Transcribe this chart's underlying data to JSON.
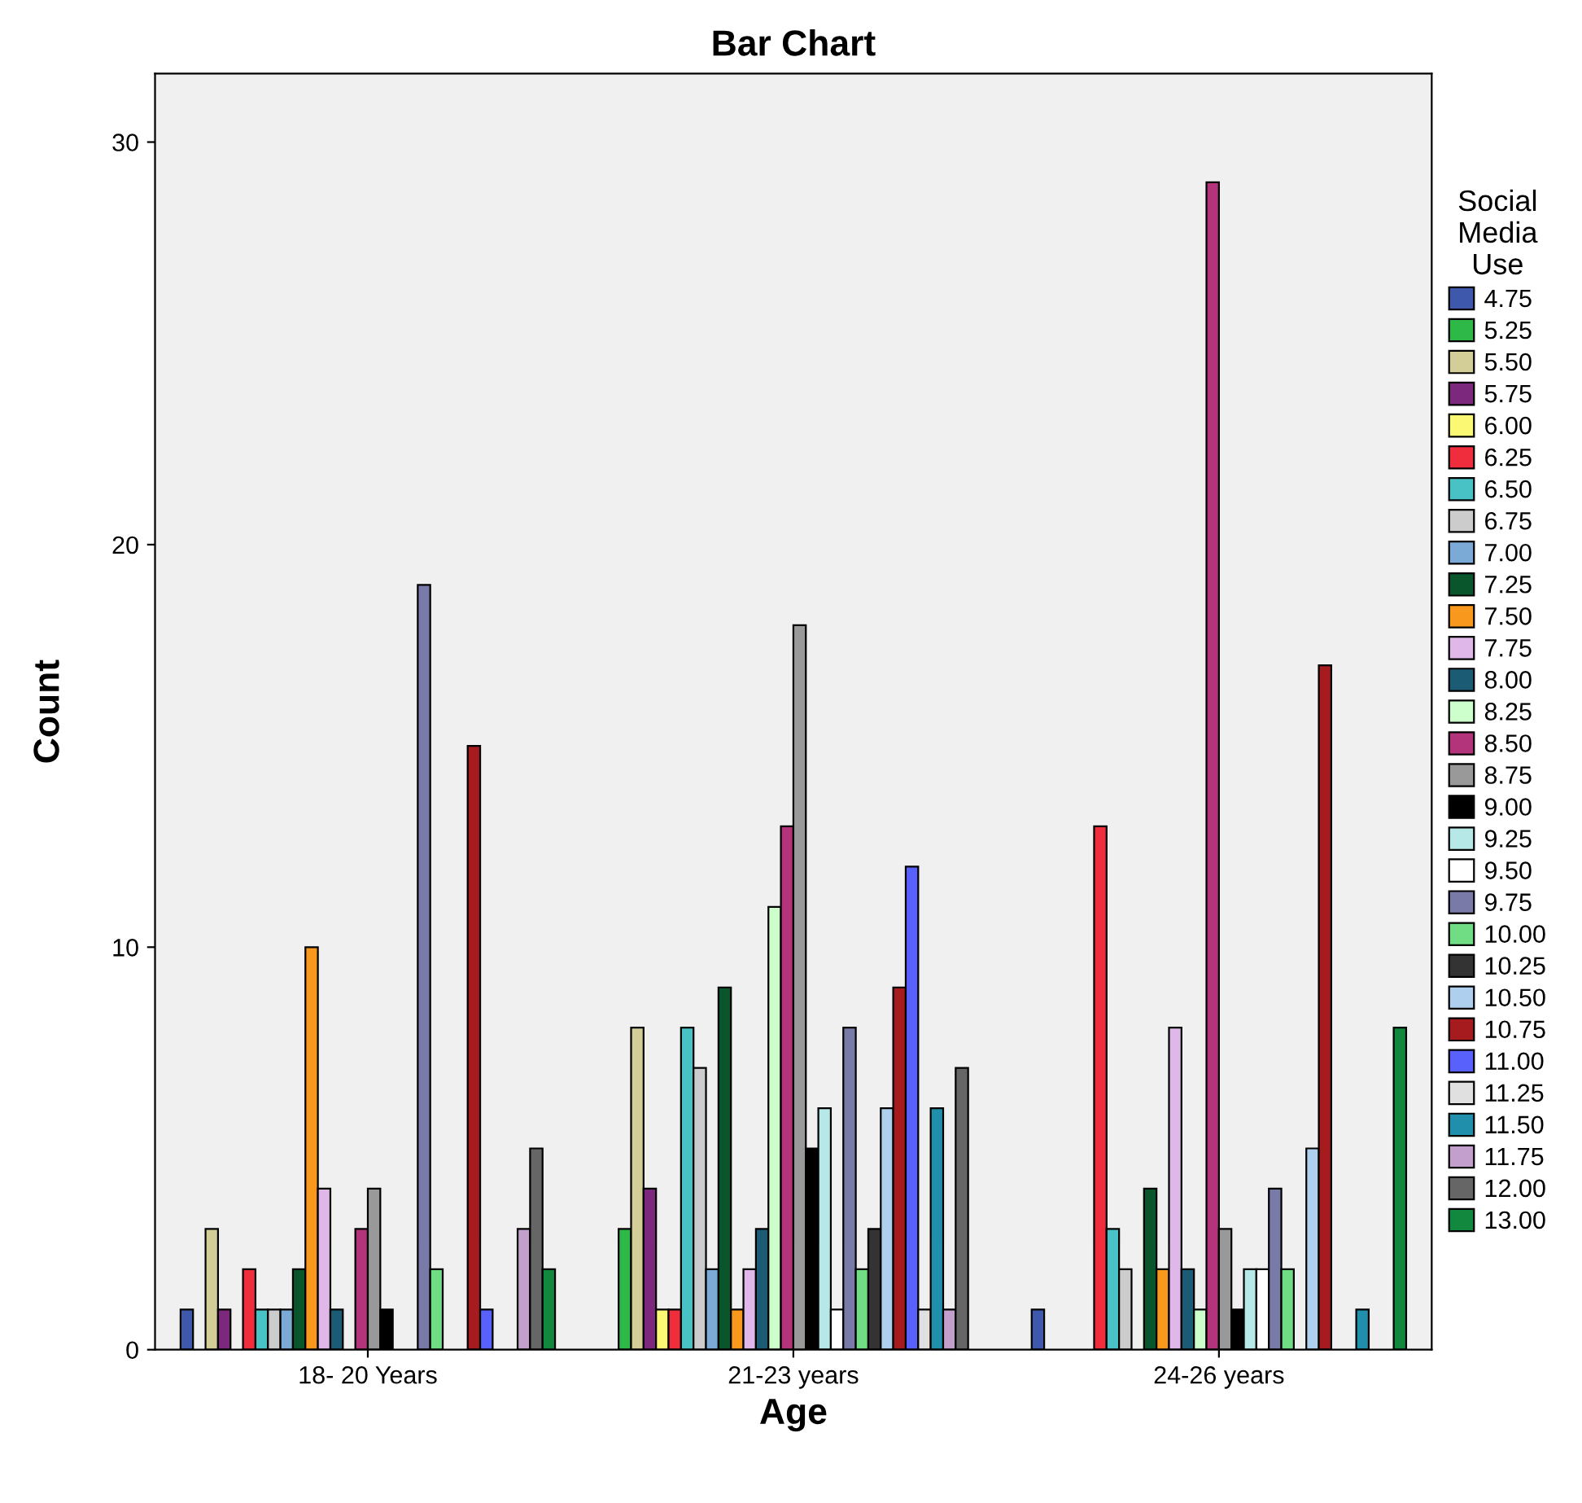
{
  "chart_data": {
    "type": "bar",
    "title": "Bar Chart",
    "xlabel": "Age",
    "ylabel": "Count",
    "legend_title": "Social\nMedia\nUse",
    "categories": [
      "18- 20 Years",
      "21-23 years",
      "24-26 years"
    ],
    "ylim": [
      0,
      31.7
    ],
    "yticks": [
      0,
      10,
      20,
      30
    ],
    "grid": false,
    "legend": "right",
    "series": [
      {
        "name": "4.75",
        "color": "#3e58ac",
        "values": [
          1,
          0,
          1
        ]
      },
      {
        "name": "5.25",
        "color": "#2eb848",
        "values": [
          0,
          3,
          0
        ]
      },
      {
        "name": "5.50",
        "color": "#d3ce97",
        "values": [
          3,
          8,
          0
        ]
      },
      {
        "name": "5.75",
        "color": "#7c287c",
        "values": [
          1,
          4,
          0
        ]
      },
      {
        "name": "6.00",
        "color": "#fbf873",
        "values": [
          0,
          1,
          0
        ]
      },
      {
        "name": "6.25",
        "color": "#ef2d3c",
        "values": [
          2,
          1,
          13
        ]
      },
      {
        "name": "6.50",
        "color": "#48c2c5",
        "values": [
          1,
          8,
          3
        ]
      },
      {
        "name": "6.75",
        "color": "#cccccc",
        "values": [
          1,
          7,
          2
        ]
      },
      {
        "name": "7.00",
        "color": "#7aaad5",
        "values": [
          1,
          2,
          0
        ]
      },
      {
        "name": "7.25",
        "color": "#0a562c",
        "values": [
          2,
          9,
          4
        ]
      },
      {
        "name": "7.50",
        "color": "#f8981d",
        "values": [
          10,
          1,
          2
        ]
      },
      {
        "name": "7.75",
        "color": "#dfb8e9",
        "values": [
          4,
          2,
          8
        ]
      },
      {
        "name": "8.00",
        "color": "#1b5b74",
        "values": [
          1,
          3,
          2
        ]
      },
      {
        "name": "8.25",
        "color": "#ccffcc",
        "values": [
          0,
          11,
          1
        ]
      },
      {
        "name": "8.50",
        "color": "#b3347b",
        "values": [
          3,
          13,
          29
        ]
      },
      {
        "name": "8.75",
        "color": "#999999",
        "values": [
          4,
          18,
          3
        ]
      },
      {
        "name": "9.00",
        "color": "#000000",
        "values": [
          1,
          5,
          1
        ]
      },
      {
        "name": "9.25",
        "color": "#b5e8e6",
        "values": [
          0,
          6,
          2
        ]
      },
      {
        "name": "9.50",
        "color": "#ffffff",
        "values": [
          0,
          1,
          2
        ]
      },
      {
        "name": "9.75",
        "color": "#797aa7",
        "values": [
          19,
          8,
          4
        ]
      },
      {
        "name": "10.00",
        "color": "#70dc84",
        "values": [
          2,
          2,
          2
        ]
      },
      {
        "name": "10.25",
        "color": "#333333",
        "values": [
          0,
          3,
          0
        ]
      },
      {
        "name": "10.50",
        "color": "#aecfee",
        "values": [
          0,
          6,
          5
        ]
      },
      {
        "name": "10.75",
        "color": "#a51b1e",
        "values": [
          15,
          9,
          17
        ]
      },
      {
        "name": "11.00",
        "color": "#5861fc",
        "values": [
          1,
          12,
          0
        ]
      },
      {
        "name": "11.25",
        "color": "#e0e0e0",
        "values": [
          0,
          1,
          0
        ]
      },
      {
        "name": "11.50",
        "color": "#1f8fab",
        "values": [
          0,
          6,
          1
        ]
      },
      {
        "name": "11.75",
        "color": "#c29fcc",
        "values": [
          3,
          1,
          0
        ]
      },
      {
        "name": "12.00",
        "color": "#666666",
        "values": [
          5,
          7,
          0
        ]
      },
      {
        "name": "13.00",
        "color": "#11883e",
        "values": [
          2,
          0,
          8
        ]
      }
    ]
  }
}
